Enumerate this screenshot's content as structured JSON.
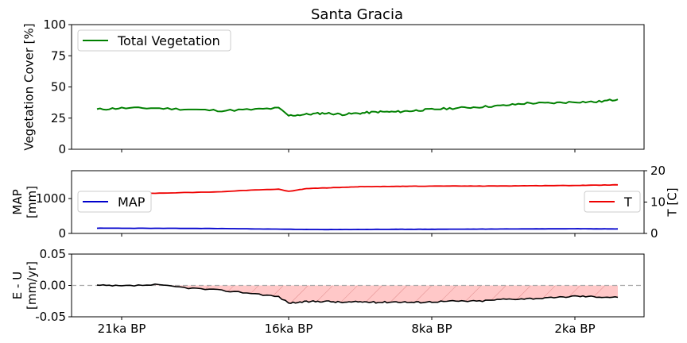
{
  "chart_data": [
    {
      "type": "line",
      "title": "Santa Gracia",
      "ylabel": "Vegetation Cover [%]",
      "ylim": [
        0,
        100
      ],
      "yticks": [
        "0",
        "25",
        "50",
        "75",
        "100"
      ],
      "xticks": [
        "21ka BP",
        "16ka BP",
        "8ka BP",
        "2ka BP"
      ],
      "legend_position": "upper left",
      "series": [
        {
          "name": "Total Vegetation",
          "color": "#008000",
          "x_ka_bp": [
            22,
            21,
            20,
            19,
            18,
            17,
            16.3,
            16,
            15,
            14,
            13,
            12,
            11,
            10,
            9,
            8,
            7,
            6,
            5,
            4,
            3,
            2,
            1,
            0
          ],
          "values": [
            32,
            33,
            33,
            32,
            31,
            32,
            33,
            27,
            28,
            29,
            28,
            29,
            30,
            30,
            31,
            32,
            33,
            34,
            35,
            37,
            37,
            38,
            38,
            40
          ]
        }
      ]
    },
    {
      "type": "line",
      "ylabel": "MAP\n[mm]",
      "ylim": [
        0,
        1800
      ],
      "yticks": [
        "0",
        "1000"
      ],
      "ylabel_right": "T [C]",
      "ylim_right": [
        0,
        20
      ],
      "yticks_right": [
        "0",
        "10",
        "20"
      ],
      "series": [
        {
          "name": "MAP",
          "color": "#0000cc",
          "legend_position": "center left",
          "x_ka_bp": [
            22,
            20,
            18,
            16,
            14,
            12,
            10,
            8,
            6,
            4,
            2,
            0
          ],
          "values": [
            150,
            148,
            140,
            120,
            110,
            115,
            118,
            120,
            125,
            130,
            135,
            130
          ]
        },
        {
          "name": "T",
          "color": "#ee0000",
          "axis": "right",
          "legend_position": "center right",
          "x_ka_bp": [
            22,
            20,
            18,
            17,
            16.3,
            16,
            15,
            14,
            12,
            10,
            8,
            6,
            4,
            2,
            0
          ],
          "values": [
            12.9,
            12.8,
            13.3,
            13.9,
            14.1,
            13.4,
            14.3,
            14.5,
            14.9,
            15.0,
            15.1,
            15.1,
            15.2,
            15.3,
            15.5
          ]
        }
      ]
    },
    {
      "type": "area",
      "ylabel": "E - U\n[mm/yr]",
      "ylim": [
        -0.05,
        0.05
      ],
      "yticks": [
        "0.05",
        "0.00",
        "-0.05"
      ],
      "reference_line": 0,
      "fill_color": "#ffc8c8",
      "series": [
        {
          "name": "E - U",
          "color": "#000000",
          "x_ka_bp": [
            22,
            21,
            20,
            19,
            18,
            17,
            16.3,
            16,
            15,
            14,
            13,
            12,
            11,
            10,
            9,
            8,
            7,
            6,
            5,
            4,
            3,
            2,
            1,
            0
          ],
          "values": [
            0.0,
            -0.001,
            0.001,
            -0.004,
            -0.008,
            -0.013,
            -0.018,
            -0.028,
            -0.026,
            -0.025,
            -0.027,
            -0.026,
            -0.027,
            -0.026,
            -0.027,
            -0.026,
            -0.025,
            -0.025,
            -0.022,
            -0.021,
            -0.02,
            -0.017,
            -0.018,
            -0.019
          ]
        }
      ]
    }
  ]
}
